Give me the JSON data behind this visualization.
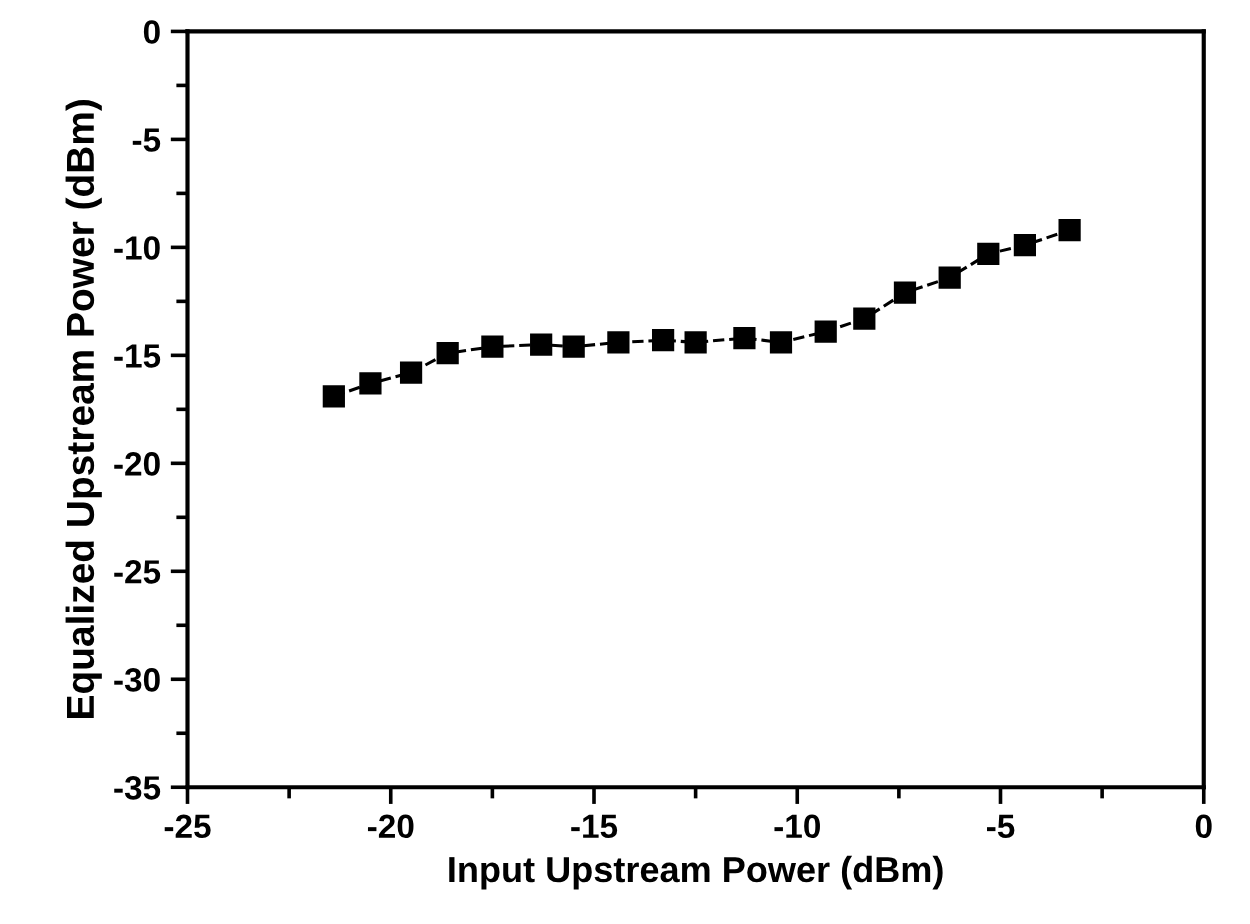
{
  "chart_data": {
    "type": "line",
    "xlabel": "Input Upstream Power (dBm)",
    "ylabel": "Equalized Upstream Power (dBm)",
    "x": [
      -21.4,
      -20.5,
      -19.5,
      -18.6,
      -17.5,
      -16.3,
      -15.5,
      -14.4,
      -13.3,
      -12.5,
      -11.3,
      -10.4,
      -9.3,
      -8.35,
      -7.35,
      -6.25,
      -5.3,
      -4.4,
      -3.3
    ],
    "series": [
      {
        "color": "#000000",
        "values": [
          -16.9,
          -16.3,
          -15.8,
          -14.9,
          -14.6,
          -14.5,
          -14.6,
          -14.4,
          -14.3,
          -14.4,
          -14.2,
          -14.4,
          -13.9,
          -13.3,
          -12.1,
          -11.4,
          -10.3,
          -9.9,
          -9.2
        ]
      }
    ],
    "xlim": [
      -25,
      0
    ],
    "xticks": [
      -25,
      -20,
      -15,
      -10,
      -5,
      0
    ],
    "ylim": [
      -35,
      0
    ],
    "yticks": [
      -35,
      -30,
      -25,
      -20,
      -15,
      -10,
      -5,
      0
    ],
    "marker": "square",
    "line_style": "dashed",
    "grid": false,
    "legend": false
  }
}
